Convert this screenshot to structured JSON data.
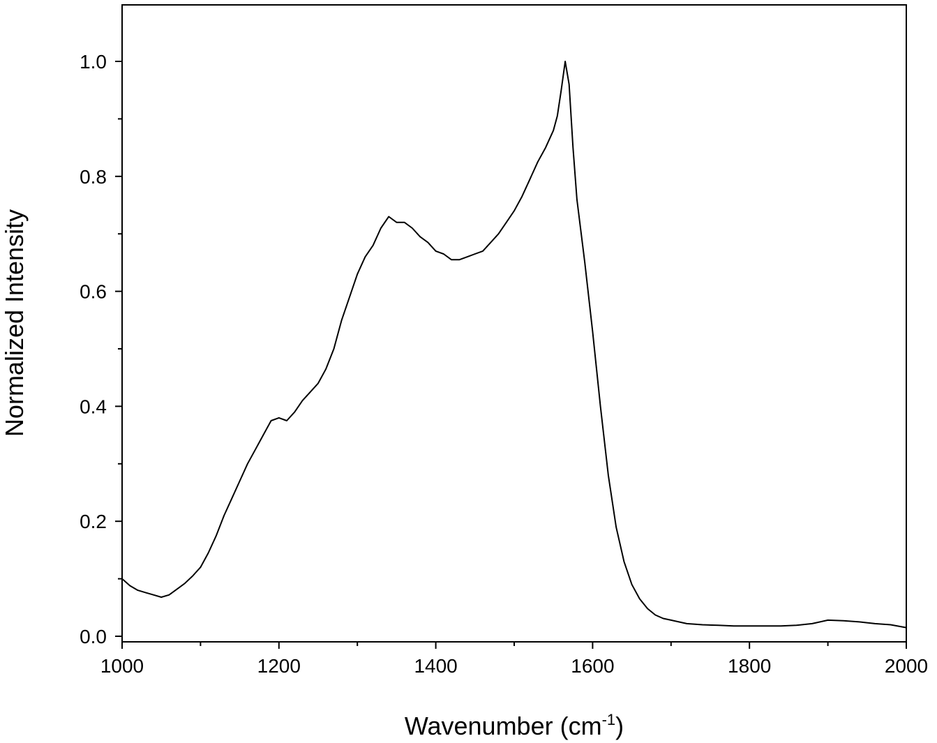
{
  "chart_data": {
    "type": "line",
    "title": "",
    "xlabel": "Wavenumber (cm",
    "xlabel_superscript": "-1",
    "xlabel_suffix": ")",
    "ylabel": "Normalized Intensity",
    "xlim": [
      1000,
      2000
    ],
    "ylim": [
      -0.01,
      1.1
    ],
    "x_ticks": [
      1000,
      1200,
      1400,
      1600,
      1800,
      2000
    ],
    "x_tick_labels": [
      "1000",
      "1200",
      "1400",
      "1600",
      "1800",
      "2000"
    ],
    "y_ticks": [
      0.0,
      0.2,
      0.4,
      0.6,
      0.8,
      1.0
    ],
    "y_tick_labels": [
      "0.0",
      "0.2",
      "0.4",
      "0.6",
      "0.8",
      "1.0"
    ],
    "grid": false,
    "legend": "none",
    "line_color": "#000000",
    "series": [
      {
        "x": [
          1000,
          1010,
          1020,
          1030,
          1040,
          1050,
          1060,
          1070,
          1080,
          1090,
          1100,
          1110,
          1120,
          1130,
          1140,
          1150,
          1160,
          1170,
          1180,
          1190,
          1200,
          1210,
          1220,
          1230,
          1240,
          1250,
          1260,
          1270,
          1280,
          1290,
          1300,
          1310,
          1320,
          1330,
          1340,
          1350,
          1360,
          1370,
          1380,
          1390,
          1400,
          1410,
          1420,
          1430,
          1440,
          1450,
          1460,
          1470,
          1480,
          1490,
          1500,
          1510,
          1520,
          1530,
          1540,
          1550,
          1555,
          1560,
          1565,
          1570,
          1575,
          1580,
          1590,
          1600,
          1610,
          1620,
          1630,
          1640,
          1650,
          1660,
          1670,
          1680,
          1690,
          1700,
          1710,
          1720,
          1740,
          1760,
          1780,
          1800,
          1820,
          1840,
          1860,
          1880,
          1900,
          1920,
          1940,
          1960,
          1980,
          2000
        ],
        "y": [
          0.1,
          0.088,
          0.08,
          0.076,
          0.072,
          0.068,
          0.072,
          0.082,
          0.092,
          0.105,
          0.12,
          0.145,
          0.175,
          0.21,
          0.24,
          0.27,
          0.3,
          0.325,
          0.35,
          0.375,
          0.38,
          0.375,
          0.39,
          0.41,
          0.425,
          0.44,
          0.465,
          0.5,
          0.55,
          0.59,
          0.63,
          0.66,
          0.68,
          0.71,
          0.73,
          0.72,
          0.72,
          0.71,
          0.695,
          0.685,
          0.67,
          0.665,
          0.655,
          0.655,
          0.66,
          0.665,
          0.67,
          0.685,
          0.7,
          0.72,
          0.74,
          0.765,
          0.795,
          0.825,
          0.85,
          0.88,
          0.905,
          0.95,
          1.0,
          0.96,
          0.85,
          0.76,
          0.65,
          0.53,
          0.4,
          0.28,
          0.19,
          0.13,
          0.09,
          0.065,
          0.048,
          0.037,
          0.031,
          0.028,
          0.025,
          0.022,
          0.02,
          0.019,
          0.018,
          0.018,
          0.018,
          0.018,
          0.019,
          0.022,
          0.028,
          0.027,
          0.025,
          0.022,
          0.02,
          0.015
        ]
      }
    ]
  }
}
